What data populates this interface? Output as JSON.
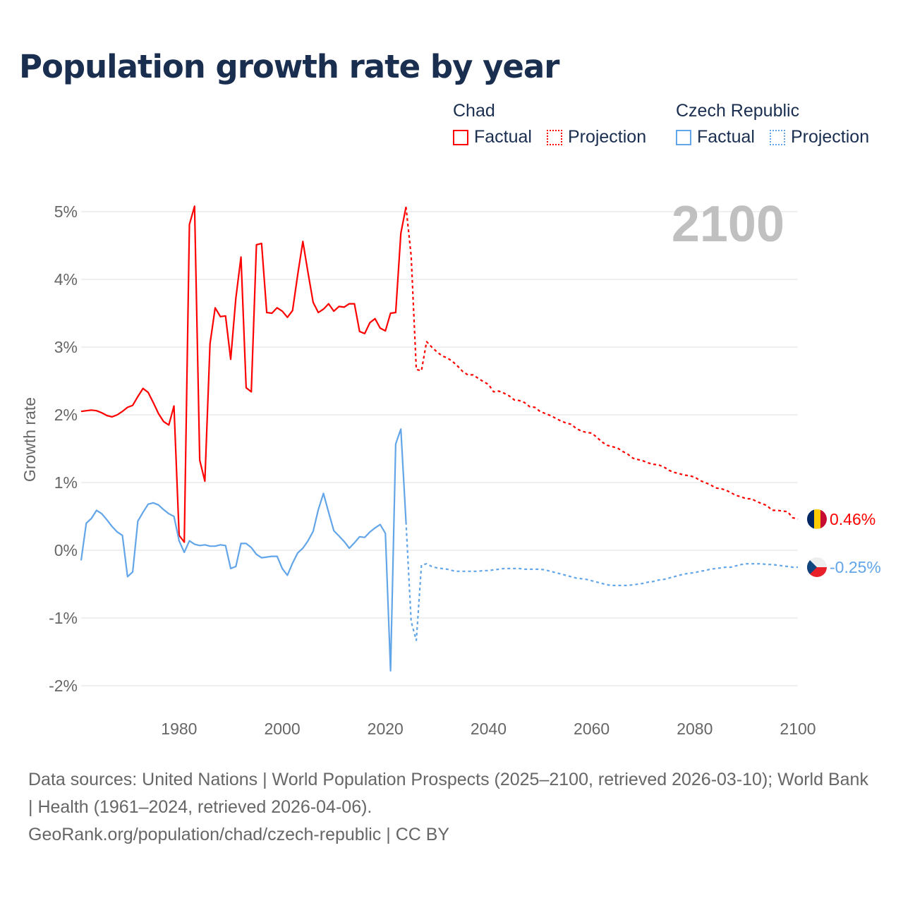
{
  "title": "Population growth rate by year",
  "legend": [
    {
      "country": "Chad",
      "factual": "Factual",
      "projection": "Projection",
      "color": "#ff0000"
    },
    {
      "country": "Czech Republic",
      "factual": "Factual",
      "projection": "Projection",
      "color": "#62a5e8"
    }
  ],
  "footer": {
    "sources": "Data sources: United Nations | World Population Prospects (2025–2100, retrieved 2026-03-10); World Bank | Health (1961–2024, retrieved 2026-04-06).",
    "url": "GeoRank.org/population/chad/czech-republic | CC BY"
  },
  "chart_data": {
    "type": "line",
    "title": "Population growth rate by year",
    "xlabel": "",
    "ylabel": "Growth rate",
    "year_label": "2100",
    "xlim": [
      1961,
      2100
    ],
    "ylim": [
      -2,
      5
    ],
    "x_ticks": [
      "1980",
      "2000",
      "2020",
      "2040",
      "2060",
      "2080",
      "2100"
    ],
    "y_ticks": [
      "5%",
      "4%",
      "3%",
      "2%",
      "1%",
      "0%",
      "-1%",
      "-2%"
    ],
    "series": [
      {
        "name": "Chad",
        "kind": "factual",
        "color": "#ff0000",
        "start": 1961,
        "values": [
          2.05,
          2.06,
          2.07,
          2.06,
          2.03,
          1.99,
          1.97,
          2.0,
          2.05,
          2.11,
          2.14,
          2.27,
          2.39,
          2.33,
          2.18,
          2.02,
          1.9,
          1.85,
          2.13,
          0.22,
          0.12,
          4.81,
          5.08,
          1.33,
          1.02,
          3.05,
          3.58,
          3.45,
          3.46,
          2.82,
          3.72,
          4.33,
          2.4,
          2.34,
          4.51,
          4.53,
          3.51,
          3.5,
          3.58,
          3.53,
          3.44,
          3.54,
          4.07,
          4.56,
          4.1,
          3.66,
          3.51,
          3.56,
          3.64,
          3.53,
          3.6,
          3.59,
          3.64,
          3.64,
          3.23,
          3.2,
          3.36,
          3.42,
          3.28,
          3.24,
          3.5,
          3.51,
          4.68,
          5.07
        ]
      },
      {
        "name": "Chad",
        "kind": "projection",
        "color": "#ff0000",
        "start": 2024,
        "values": [
          5.07,
          4.35,
          2.67,
          2.65,
          3.08,
          3.0,
          2.93,
          2.87,
          2.84,
          2.79,
          2.72,
          2.64,
          2.59,
          2.59,
          2.54,
          2.49,
          2.45,
          2.34,
          2.35,
          2.32,
          2.28,
          2.22,
          2.21,
          2.18,
          2.12,
          2.11,
          2.05,
          2.02,
          1.99,
          1.95,
          1.91,
          1.88,
          1.86,
          1.8,
          1.76,
          1.74,
          1.73,
          1.67,
          1.6,
          1.55,
          1.53,
          1.51,
          1.46,
          1.42,
          1.36,
          1.34,
          1.32,
          1.29,
          1.27,
          1.26,
          1.23,
          1.18,
          1.15,
          1.13,
          1.11,
          1.1,
          1.08,
          1.03,
          1.0,
          0.97,
          0.92,
          0.91,
          0.89,
          0.85,
          0.81,
          0.79,
          0.76,
          0.76,
          0.72,
          0.69,
          0.66,
          0.59,
          0.59,
          0.58,
          0.57,
          0.48,
          0.46
        ]
      },
      {
        "name": "Czech Republic",
        "kind": "factual",
        "color": "#62a5e8",
        "start": 1961,
        "values": [
          -0.15,
          0.4,
          0.47,
          0.59,
          0.54,
          0.45,
          0.35,
          0.27,
          0.22,
          -0.39,
          -0.32,
          0.43,
          0.56,
          0.68,
          0.7,
          0.67,
          0.6,
          0.54,
          0.5,
          0.14,
          -0.03,
          0.14,
          0.09,
          0.07,
          0.08,
          0.06,
          0.06,
          0.08,
          0.07,
          -0.27,
          -0.24,
          0.1,
          0.1,
          0.04,
          -0.06,
          -0.11,
          -0.1,
          -0.09,
          -0.09,
          -0.27,
          -0.37,
          -0.19,
          -0.04,
          0.03,
          0.14,
          0.28,
          0.6,
          0.84,
          0.56,
          0.29,
          0.21,
          0.13,
          0.03,
          0.11,
          0.2,
          0.19,
          0.27,
          0.33,
          0.38,
          0.25,
          -1.78,
          1.57,
          1.79,
          0.42
        ]
      },
      {
        "name": "Czech Republic",
        "kind": "projection",
        "color": "#62a5e8",
        "start": 2024,
        "values": [
          0.42,
          -1.05,
          -1.33,
          -0.22,
          -0.2,
          -0.24,
          -0.26,
          -0.27,
          -0.28,
          -0.3,
          -0.31,
          -0.31,
          -0.31,
          -0.31,
          -0.31,
          -0.3,
          -0.3,
          -0.29,
          -0.28,
          -0.27,
          -0.27,
          -0.27,
          -0.27,
          -0.28,
          -0.28,
          -0.28,
          -0.28,
          -0.29,
          -0.31,
          -0.33,
          -0.35,
          -0.37,
          -0.39,
          -0.41,
          -0.42,
          -0.43,
          -0.45,
          -0.47,
          -0.49,
          -0.51,
          -0.52,
          -0.52,
          -0.52,
          -0.52,
          -0.51,
          -0.5,
          -0.49,
          -0.47,
          -0.46,
          -0.44,
          -0.43,
          -0.41,
          -0.39,
          -0.37,
          -0.35,
          -0.34,
          -0.33,
          -0.31,
          -0.3,
          -0.28,
          -0.27,
          -0.26,
          -0.25,
          -0.25,
          -0.23,
          -0.21,
          -0.2,
          -0.2,
          -0.2,
          -0.2,
          -0.21,
          -0.21,
          -0.22,
          -0.23,
          -0.24,
          -0.25,
          -0.25
        ]
      }
    ],
    "end_labels": [
      {
        "country": "Chad",
        "text": "0.46%",
        "value": 0.46,
        "color": "#ff0000"
      },
      {
        "country": "Czech Republic",
        "text": "-0.25%",
        "value": -0.25,
        "color": "#62a5e8"
      }
    ]
  }
}
